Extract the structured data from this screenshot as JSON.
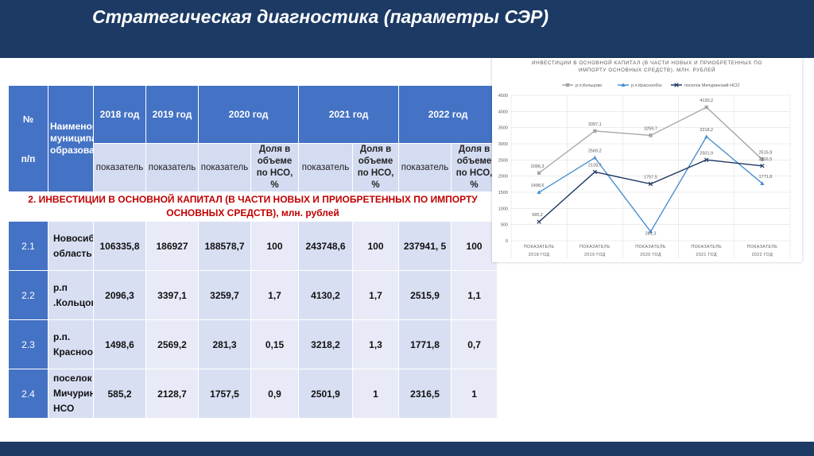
{
  "page": {
    "title": "Стратегическая диагностика (параметры СЭР)"
  },
  "table": {
    "col_num_header_top": "№",
    "col_num_header_bottom": "п/п",
    "col_name_header": "Наименование муниципального образования",
    "years": [
      "2018 год",
      "2019 год",
      "2020 год",
      "2021 год",
      "2022 год"
    ],
    "sub_indicator": "показатель",
    "sub_share": "Доля в объеме по НСО, %",
    "section_title": "2. ИНВЕСТИЦИИ В ОСНОВНОЙ КАПИТАЛ (В ЧАСТИ НОВЫХ И ПРИОБРЕТЕННЫХ ПО ИМПОРТУ ОСНОВНЫХ СРЕДСТВ), млн. рублей",
    "rows": [
      {
        "num": "2.1",
        "name": "Новосибирская область",
        "v2018": "106335,8",
        "v2019": "186927",
        "v2020": "188578,7",
        "s2020": "100",
        "v2021": "243748,6",
        "s2021": "100",
        "v2022": "237941, 5",
        "s2022": "100"
      },
      {
        "num": "2.2",
        "name": "р.п .Кольцово",
        "v2018": "2096,3",
        "v2019": "3397,1",
        "v2020": "3259,7",
        "s2020": "1,7",
        "v2021": "4130,2",
        "s2021": "1,7",
        "v2022": "2515,9",
        "s2022": "1,1"
      },
      {
        "num": "2.3",
        "name": "р.п. Краснообск",
        "v2018": "1498,6",
        "v2019": "2569,2",
        "v2020": "281,3",
        "s2020": "0,15",
        "v2021": "3218,2",
        "s2021": "1,3",
        "v2022": "1771,8",
        "s2022": "0,7"
      },
      {
        "num": "2.4",
        "name": "поселок Мичуринский НСО",
        "v2018": "585,2",
        "v2019": "2128,7",
        "v2020": "1757,5",
        "s2020": "0,9",
        "v2021": "2501,9",
        "s2021": "1",
        "v2022": "2316,5",
        "s2022": "1"
      }
    ]
  },
  "chart_data": {
    "type": "line",
    "title": "ИНВЕСТИЦИИ В ОСНОВНОЙ КАПИТАЛ (В ЧАСТИ НОВЫХ И ПРИОБРЕТЕННЫХ ПО ИМПОРТУ ОСНОВНЫХ СРЕДСТВ), МЛН. РУБЛЕЙ",
    "categories": [
      [
        "ПОКАЗАТЕЛЬ",
        "2018 ГОД"
      ],
      [
        "ПОКАЗАТЕЛЬ",
        "2019 ГОД"
      ],
      [
        "ПОКАЗАТЕЛЬ",
        "2020 ГОД"
      ],
      [
        "ПОКАЗАТЕЛЬ",
        "2021 ГОД"
      ],
      [
        "ПОКАЗАТЕЛЬ",
        "2022 ГОД"
      ]
    ],
    "series": [
      {
        "name": "р.п.Кольцово",
        "values": [
          2096.3,
          3397.1,
          3259.7,
          4130.2,
          2515.9
        ],
        "labels": [
          "2096,3",
          "3397,1",
          "3259,7",
          "4130,2",
          "2515,9"
        ],
        "color": "#a6a6a6",
        "marker": "square"
      },
      {
        "name": "р.п.Краснообск",
        "values": [
          1498.6,
          2569.2,
          281.3,
          3218.2,
          1771.8
        ],
        "labels": [
          "1498,6",
          "2569,2",
          "281,3",
          "3218,2",
          "1771,8"
        ],
        "color": "#4a90d0",
        "marker": "triangle"
      },
      {
        "name": "поселок Мичуринский НСО",
        "values": [
          585.2,
          2128.7,
          1757.5,
          2501.9,
          2316.5
        ],
        "labels": [
          "585,2",
          "2128,7",
          "1757,5",
          "2501,9",
          "2316,5"
        ],
        "color": "#203864",
        "marker": "x"
      }
    ],
    "ylim": [
      0,
      4500
    ],
    "yticks": [
      0,
      500,
      1000,
      1500,
      2000,
      2500,
      3000,
      3500,
      4000,
      4500
    ],
    "grid": true,
    "legend": "top"
  }
}
